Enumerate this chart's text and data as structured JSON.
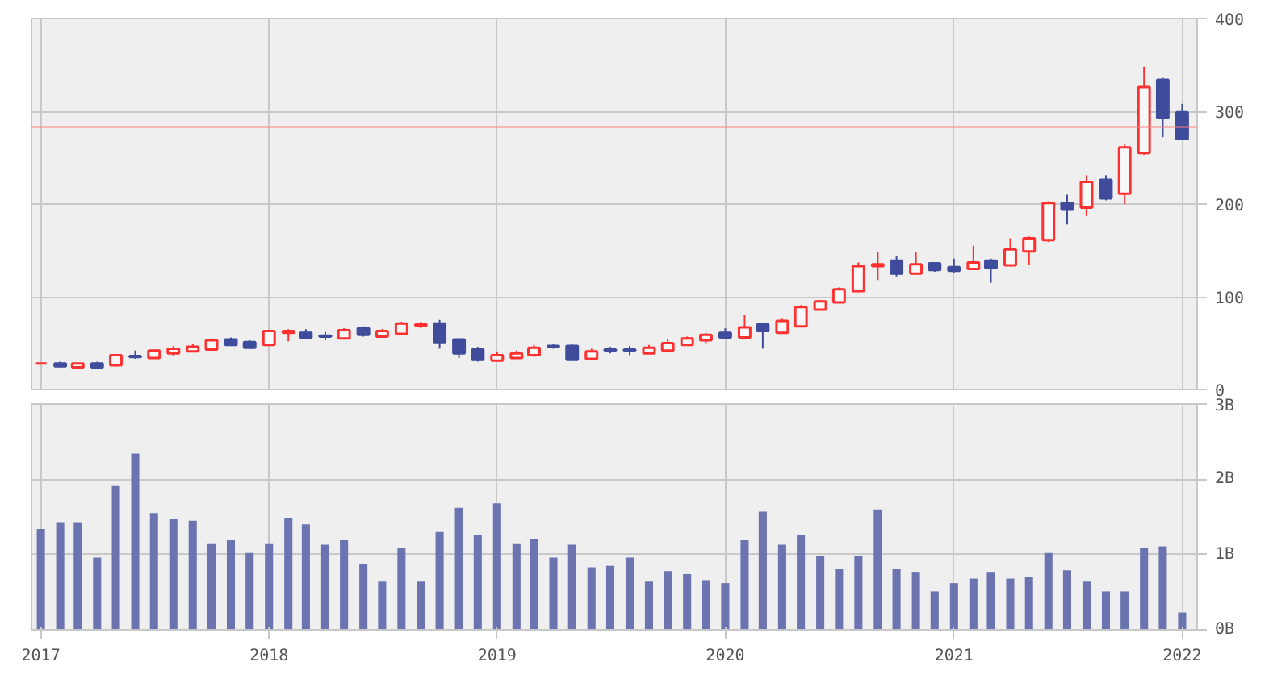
{
  "chart_data": [
    {
      "type": "candlestick",
      "x": [
        "2017-01",
        "2017-02",
        "2017-03",
        "2017-04",
        "2017-05",
        "2017-06",
        "2017-07",
        "2017-08",
        "2017-09",
        "2017-10",
        "2017-11",
        "2017-12",
        "2018-01",
        "2018-02",
        "2018-03",
        "2018-04",
        "2018-05",
        "2018-06",
        "2018-07",
        "2018-08",
        "2018-09",
        "2018-10",
        "2018-11",
        "2018-12",
        "2019-01",
        "2019-02",
        "2019-03",
        "2019-04",
        "2019-05",
        "2019-06",
        "2019-07",
        "2019-08",
        "2019-09",
        "2019-10",
        "2019-11",
        "2019-12",
        "2020-01",
        "2020-02",
        "2020-03",
        "2020-04",
        "2020-05",
        "2020-06",
        "2020-07",
        "2020-08",
        "2020-09",
        "2020-10",
        "2020-11",
        "2020-12",
        "2021-01",
        "2021-02",
        "2021-03",
        "2021-04",
        "2021-05",
        "2021-06",
        "2021-07",
        "2021-08",
        "2021-09",
        "2021-10",
        "2021-11",
        "2021-12",
        "2022-01"
      ],
      "ohlc": [
        [
          28,
          29,
          27,
          28
        ],
        [
          28,
          30,
          24,
          25
        ],
        [
          24,
          28,
          24,
          28
        ],
        [
          28,
          30,
          24,
          24
        ],
        [
          26,
          38,
          25,
          37
        ],
        [
          36,
          42,
          33,
          35
        ],
        [
          34,
          43,
          33,
          42
        ],
        [
          39,
          47,
          36,
          44
        ],
        [
          41,
          49,
          41,
          46
        ],
        [
          43,
          55,
          43,
          53
        ],
        [
          54,
          56,
          47,
          48
        ],
        [
          51,
          53,
          44,
          45
        ],
        [
          48,
          64,
          47,
          63
        ],
        [
          61,
          65,
          52,
          63
        ],
        [
          61,
          65,
          54,
          56
        ],
        [
          58,
          62,
          53,
          57
        ],
        [
          55,
          66,
          55,
          64
        ],
        [
          66,
          68,
          57,
          59
        ],
        [
          57,
          65,
          56,
          63
        ],
        [
          60,
          73,
          60,
          71
        ],
        [
          69,
          73,
          66,
          70
        ],
        [
          71,
          75,
          44,
          51
        ],
        [
          54,
          55,
          34,
          39
        ],
        [
          43,
          46,
          30,
          32
        ],
        [
          31,
          41,
          31,
          37
        ],
        [
          34,
          42,
          34,
          39
        ],
        [
          37,
          48,
          35,
          45
        ],
        [
          47,
          49,
          44,
          46
        ],
        [
          47,
          49,
          32,
          32
        ],
        [
          33,
          44,
          32,
          41
        ],
        [
          43,
          46,
          39,
          42
        ],
        [
          43,
          47,
          37,
          42
        ],
        [
          39,
          48,
          39,
          45
        ],
        [
          42,
          54,
          42,
          50
        ],
        [
          48,
          57,
          47,
          55
        ],
        [
          53,
          61,
          50,
          59
        ],
        [
          61,
          66,
          55,
          56
        ],
        [
          56,
          80,
          56,
          67
        ],
        [
          70,
          71,
          44,
          63
        ],
        [
          61,
          77,
          60,
          74
        ],
        [
          68,
          91,
          68,
          89
        ],
        [
          86,
          96,
          86,
          95
        ],
        [
          94,
          110,
          93,
          108
        ],
        [
          106,
          137,
          105,
          133
        ],
        [
          133,
          148,
          118,
          135
        ],
        [
          139,
          144,
          122,
          125
        ],
        [
          125,
          148,
          124,
          135
        ],
        [
          136,
          137,
          127,
          129
        ],
        [
          132,
          141,
          126,
          128
        ],
        [
          130,
          155,
          130,
          137
        ],
        [
          139,
          141,
          115,
          131
        ],
        [
          134,
          163,
          134,
          151
        ],
        [
          149,
          165,
          134,
          163
        ],
        [
          161,
          203,
          159,
          201
        ],
        [
          201,
          210,
          178,
          194
        ],
        [
          196,
          231,
          187,
          224
        ],
        [
          226,
          231,
          204,
          206
        ],
        [
          211,
          264,
          200,
          261
        ],
        [
          255,
          348,
          253,
          326
        ],
        [
          334,
          336,
          272,
          293
        ],
        [
          299,
          308,
          270,
          270
        ]
      ],
      "colors": [
        "#ff3030",
        "#3f4b9b",
        "#ff3030",
        "#3f4b9b",
        "#ff3030",
        "#3f4b9b",
        "#ff3030",
        "#ff3030",
        "#ff3030",
        "#ff3030",
        "#3f4b9b",
        "#3f4b9b",
        "#ff3030",
        "#ff3030",
        "#3f4b9b",
        "#3f4b9b",
        "#ff3030",
        "#3f4b9b",
        "#ff3030",
        "#ff3030",
        "#ff3030",
        "#3f4b9b",
        "#3f4b9b",
        "#3f4b9b",
        "#ff3030",
        "#ff3030",
        "#ff3030",
        "#3f4b9b",
        "#3f4b9b",
        "#ff3030",
        "#3f4b9b",
        "#3f4b9b",
        "#ff3030",
        "#ff3030",
        "#ff3030",
        "#ff3030",
        "#3f4b9b",
        "#ff3030",
        "#3f4b9b",
        "#ff3030",
        "#ff3030",
        "#ff3030",
        "#ff3030",
        "#ff3030",
        "#ff3030",
        "#3f4b9b",
        "#ff3030",
        "#3f4b9b",
        "#3f4b9b",
        "#ff3030",
        "#3f4b9b",
        "#ff3030",
        "#ff3030",
        "#ff3030",
        "#3f4b9b",
        "#ff3030",
        "#3f4b9b",
        "#ff3030",
        "#ff3030",
        "#3f4b9b",
        "#3f4b9b"
      ],
      "xlim": [
        "2016-12-17",
        "2022-01-25"
      ],
      "xticks": [
        {
          "value": "2017-01",
          "label": null
        },
        {
          "value": "2018-01",
          "label": null
        },
        {
          "value": "2019-01",
          "label": null
        },
        {
          "value": "2020-01",
          "label": null
        },
        {
          "value": "2021-01",
          "label": null
        },
        {
          "value": "2022-01",
          "label": null
        }
      ],
      "ylim": [
        0,
        400
      ],
      "yticks": [
        0,
        100,
        200,
        300,
        400
      ],
      "ref_lines": [
        {
          "axis": "y",
          "value": 283,
          "color": "#ff8080"
        }
      ],
      "grid": true,
      "tick_labels": "y"
    },
    {
      "type": "bar",
      "x": [
        "2017-01",
        "2017-02",
        "2017-03",
        "2017-04",
        "2017-05",
        "2017-06",
        "2017-07",
        "2017-08",
        "2017-09",
        "2017-10",
        "2017-11",
        "2017-12",
        "2018-01",
        "2018-02",
        "2018-03",
        "2018-04",
        "2018-05",
        "2018-06",
        "2018-07",
        "2018-08",
        "2018-09",
        "2018-10",
        "2018-11",
        "2018-12",
        "2019-01",
        "2019-02",
        "2019-03",
        "2019-04",
        "2019-05",
        "2019-06",
        "2019-07",
        "2019-08",
        "2019-09",
        "2019-10",
        "2019-11",
        "2019-12",
        "2020-01",
        "2020-02",
        "2020-03",
        "2020-04",
        "2020-05",
        "2020-06",
        "2020-07",
        "2020-08",
        "2020-09",
        "2020-10",
        "2020-11",
        "2020-12",
        "2021-01",
        "2021-02",
        "2021-03",
        "2021-04",
        "2021-05",
        "2021-06",
        "2021-07",
        "2021-08",
        "2021-09",
        "2021-10",
        "2021-11",
        "2021-12",
        "2022-01"
      ],
      "values": [
        1.34,
        1.43,
        1.43,
        0.96,
        1.91,
        2.34,
        1.55,
        1.47,
        1.45,
        1.15,
        1.19,
        1.02,
        1.15,
        1.49,
        1.4,
        1.13,
        1.19,
        0.87,
        0.64,
        1.09,
        0.64,
        1.3,
        1.62,
        1.26,
        1.68,
        1.15,
        1.21,
        0.96,
        1.13,
        0.83,
        0.85,
        0.96,
        0.64,
        0.78,
        0.74,
        0.66,
        0.62,
        1.19,
        1.57,
        1.13,
        1.26,
        0.98,
        0.81,
        0.98,
        1.6,
        0.81,
        0.77,
        0.51,
        0.62,
        0.68,
        0.77,
        0.68,
        0.7,
        1.02,
        0.79,
        0.64,
        0.51,
        0.51,
        1.09,
        1.11,
        0.23
      ],
      "color": "#6b74b0",
      "xlim": [
        "2016-12-17",
        "2022-01-25"
      ],
      "xticks": [
        {
          "value": "2017-01",
          "label": "2017"
        },
        {
          "value": "2018-01",
          "label": "2018"
        },
        {
          "value": "2019-01",
          "label": "2019"
        },
        {
          "value": "2020-01",
          "label": "2020"
        },
        {
          "value": "2021-01",
          "label": "2021"
        },
        {
          "value": "2022-01",
          "label": "2022"
        }
      ],
      "ylim": [
        0,
        3
      ],
      "yticks": [
        {
          "value": 0,
          "label": "0B"
        },
        {
          "value": 1,
          "label": "1B"
        },
        {
          "value": 2,
          "label": "2B"
        },
        {
          "value": 3,
          "label": "3B"
        }
      ],
      "grid": true
    }
  ]
}
